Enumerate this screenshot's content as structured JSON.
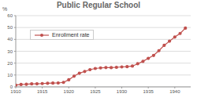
{
  "chart_data": {
    "type": "line",
    "title": "Public Regular School",
    "y_label": "%",
    "x": [
      1910,
      1911,
      1912,
      1913,
      1914,
      1915,
      1916,
      1917,
      1918,
      1919,
      1920,
      1921,
      1922,
      1923,
      1924,
      1925,
      1926,
      1927,
      1928,
      1929,
      1930,
      1931,
      1932,
      1933,
      1934,
      1935,
      1936,
      1937,
      1938,
      1939,
      1940,
      1941,
      1942
    ],
    "series": [
      {
        "name": "Enrollment rate",
        "color": "#c0504d",
        "marker": "circle",
        "values": [
          1.5,
          2,
          2.2,
          2.5,
          2.6,
          2.8,
          3,
          3.2,
          3.3,
          3.8,
          6,
          9,
          11.5,
          13,
          14.5,
          15.5,
          16,
          16.3,
          16.2,
          16.5,
          16.8,
          17,
          17.5,
          19.5,
          21.5,
          24,
          26.5,
          30.5,
          35,
          38.5,
          42,
          45,
          49.5
        ]
      }
    ],
    "xlim": [
      1910,
      1943
    ],
    "xticks": [
      1910,
      1915,
      1920,
      1925,
      1930,
      1935,
      1940
    ],
    "ylim": [
      0,
      60
    ],
    "yticks": [
      0,
      10,
      20,
      30,
      40,
      50,
      60
    ],
    "grid": true,
    "legend": "upper left"
  }
}
